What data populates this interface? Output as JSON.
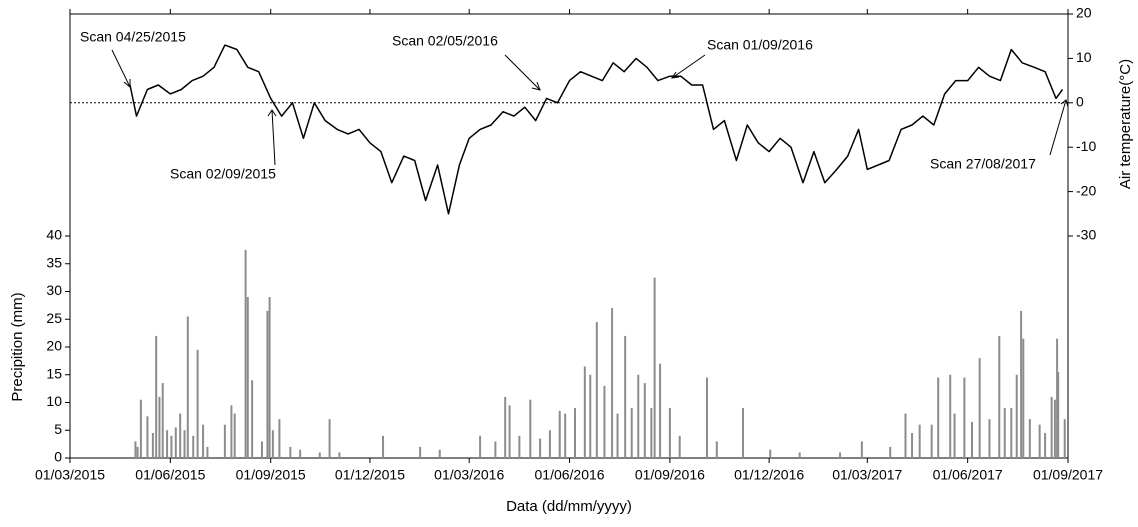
{
  "chart_data": {
    "type": "combo",
    "x_label": "Data (dd/mm/yyyy)",
    "y_label": "Precipition (mm)",
    "y2_label": "Air temperature(°C)",
    "xlim": [
      "2015-03-01",
      "2017-09-01"
    ],
    "xticks": [
      {
        "value": "2015-03-01",
        "label": "01/03/2015"
      },
      {
        "value": "2015-06-01",
        "label": "01/06/2015"
      },
      {
        "value": "2015-09-01",
        "label": "01/09/2015"
      },
      {
        "value": "2015-12-01",
        "label": "01/12/2015"
      },
      {
        "value": "2016-03-01",
        "label": "01/03/2016"
      },
      {
        "value": "2016-06-01",
        "label": "01/06/2016"
      },
      {
        "value": "2016-09-01",
        "label": "01/09/2016"
      },
      {
        "value": "2016-12-01",
        "label": "01/12/2016"
      },
      {
        "value": "2017-03-01",
        "label": "01/03/2017"
      },
      {
        "value": "2017-06-01",
        "label": "01/06/2017"
      },
      {
        "value": "2017-09-01",
        "label": "01/09/2017"
      }
    ],
    "ylim": [
      0,
      80
    ],
    "yticks": [
      0,
      5,
      10,
      15,
      20,
      25,
      30,
      35,
      40
    ],
    "y2lim": [
      -80,
      20
    ],
    "y2ticks": [
      -30,
      -20,
      -10,
      0,
      10,
      20
    ],
    "y2_reference": 0,
    "annotations": [
      "Scan 04/25/2015",
      "Scan 02/09/2015",
      "Scan 02/05/2016",
      "Scan 01/09/2016",
      "Scan 27/08/2017"
    ],
    "series": [
      {
        "type": "line",
        "axis": "y2",
        "color": "#000000",
        "x": [
          "2015-04-25",
          "2015-05-01",
          "2015-05-11",
          "2015-05-21",
          "2015-06-01",
          "2015-06-11",
          "2015-06-21",
          "2015-07-01",
          "2015-07-11",
          "2015-07-21",
          "2015-08-01",
          "2015-08-11",
          "2015-08-21",
          "2015-09-01",
          "2015-09-11",
          "2015-09-21",
          "2015-10-01",
          "2015-10-11",
          "2015-10-21",
          "2015-11-01",
          "2015-11-11",
          "2015-11-21",
          "2015-12-01",
          "2015-12-11",
          "2015-12-21",
          "2016-01-01",
          "2016-01-11",
          "2016-01-21",
          "2016-02-01",
          "2016-02-11",
          "2016-02-21",
          "2016-03-01",
          "2016-03-11",
          "2016-03-21",
          "2016-04-01",
          "2016-04-11",
          "2016-04-21",
          "2016-05-01",
          "2016-05-11",
          "2016-05-21",
          "2016-06-01",
          "2016-06-11",
          "2016-06-21",
          "2016-07-01",
          "2016-07-11",
          "2016-07-21",
          "2016-08-01",
          "2016-08-11",
          "2016-08-21",
          "2016-09-01",
          "2016-09-11",
          "2016-09-21",
          "2016-10-01",
          "2016-10-11",
          "2016-10-21",
          "2016-11-01",
          "2016-11-11",
          "2016-11-21",
          "2016-12-01",
          "2016-12-11",
          "2016-12-21",
          "2017-01-01",
          "2017-01-11",
          "2017-01-21",
          "2017-02-01",
          "2017-02-11",
          "2017-02-21",
          "2017-03-01",
          "2017-03-11",
          "2017-03-21",
          "2017-04-01",
          "2017-04-11",
          "2017-04-21",
          "2017-05-01",
          "2017-05-11",
          "2017-05-21",
          "2017-06-01",
          "2017-06-11",
          "2017-06-21",
          "2017-07-01",
          "2017-07-11",
          "2017-07-21",
          "2017-08-01",
          "2017-08-11",
          "2017-08-21",
          "2017-08-27"
        ],
        "values": [
          4,
          -3,
          3,
          4,
          2,
          3,
          5,
          6,
          8,
          13,
          12,
          8,
          7,
          1,
          -3,
          0,
          -8,
          0,
          -4,
          -6,
          -7,
          -6,
          -9,
          -11,
          -18,
          -12,
          -13,
          -22,
          -14,
          -25,
          -14,
          -8,
          -6,
          -5,
          -2,
          -3,
          -1,
          -4,
          1,
          0,
          5,
          7,
          6,
          5,
          9,
          7,
          10,
          8,
          5,
          6,
          6,
          4,
          4,
          -6,
          -4,
          -13,
          -5,
          -9,
          -11,
          -8,
          -10,
          -18,
          -11,
          -18,
          -15,
          -12,
          -6,
          -15,
          -14,
          -13,
          -6,
          -5,
          -3,
          -5,
          2,
          5,
          5,
          8,
          6,
          5,
          12,
          9,
          8,
          7,
          1,
          3
        ]
      },
      {
        "type": "bar",
        "axis": "y",
        "color": "#8c8c8c",
        "x": [
          "2015-04-30",
          "2015-05-02",
          "2015-05-05",
          "2015-05-11",
          "2015-05-16",
          "2015-05-19",
          "2015-05-22",
          "2015-05-25",
          "2015-05-29",
          "2015-06-02",
          "2015-06-06",
          "2015-06-10",
          "2015-06-14",
          "2015-06-17",
          "2015-06-22",
          "2015-06-26",
          "2015-07-01",
          "2015-07-05",
          "2015-07-21",
          "2015-07-27",
          "2015-07-30",
          "2015-08-09",
          "2015-08-11",
          "2015-08-15",
          "2015-08-24",
          "2015-08-29",
          "2015-08-31",
          "2015-09-03",
          "2015-09-09",
          "2015-09-19",
          "2015-09-28",
          "2015-10-16",
          "2015-10-25",
          "2015-11-03",
          "2015-12-13",
          "2016-01-16",
          "2016-02-03",
          "2016-03-11",
          "2016-03-25",
          "2016-04-03",
          "2016-04-07",
          "2016-04-16",
          "2016-04-26",
          "2016-05-05",
          "2016-05-14",
          "2016-05-23",
          "2016-05-28",
          "2016-06-06",
          "2016-06-15",
          "2016-06-20",
          "2016-06-26",
          "2016-07-03",
          "2016-07-10",
          "2016-07-15",
          "2016-07-22",
          "2016-07-28",
          "2016-08-03",
          "2016-08-09",
          "2016-08-15",
          "2016-08-18",
          "2016-08-23",
          "2016-09-01",
          "2016-09-10",
          "2016-10-05",
          "2016-10-14",
          "2016-11-07",
          "2016-12-02",
          "2016-12-29",
          "2017-02-04",
          "2017-02-24",
          "2017-03-22",
          "2017-04-05",
          "2017-04-11",
          "2017-04-18",
          "2017-04-29",
          "2017-05-05",
          "2017-05-16",
          "2017-05-20",
          "2017-05-29",
          "2017-06-05",
          "2017-06-12",
          "2017-06-21",
          "2017-06-30",
          "2017-07-05",
          "2017-07-11",
          "2017-07-16",
          "2017-07-20",
          "2017-07-22",
          "2017-07-28",
          "2017-08-06",
          "2017-08-11",
          "2017-08-17",
          "2017-08-20",
          "2017-08-22",
          "2017-08-23",
          "2017-08-29"
        ],
        "values": [
          3,
          2,
          10.5,
          7.5,
          4.5,
          22,
          11,
          13.5,
          5,
          4,
          5.5,
          8,
          5,
          25.5,
          4,
          19.5,
          6,
          2,
          6,
          9.5,
          8,
          37.5,
          29,
          14,
          3,
          26.5,
          29,
          5,
          7,
          2,
          1.5,
          1,
          7,
          1,
          4,
          2,
          1.5,
          4,
          3,
          11,
          9.5,
          4,
          10.5,
          3.5,
          5,
          8.5,
          8,
          9,
          16.5,
          15,
          24.5,
          13,
          27,
          8,
          22,
          9,
          15,
          13.5,
          9,
          32.5,
          17,
          9,
          4,
          14.5,
          3,
          9,
          1.5,
          1,
          1,
          3,
          2,
          8,
          4.5,
          6,
          6,
          14.5,
          15,
          8,
          14.5,
          6.5,
          18,
          7,
          22,
          9,
          9,
          15,
          26.5,
          21.5,
          7,
          6,
          4.5,
          11,
          10.5,
          21.5,
          15.5,
          7
        ]
      }
    ]
  }
}
